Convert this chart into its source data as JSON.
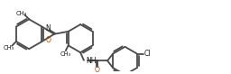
{
  "bg_color": "#ffffff",
  "bond_color": "#4a4a4a",
  "lw": 1.3,
  "o_color": "#c84800",
  "text_color": "#1a1a1a",
  "figsize": [
    2.56,
    0.82
  ],
  "dpi": 100,
  "xlim": [
    0,
    256
  ],
  "ylim": [
    0,
    82
  ],
  "font_size": 5.5,
  "small_font": 4.8
}
